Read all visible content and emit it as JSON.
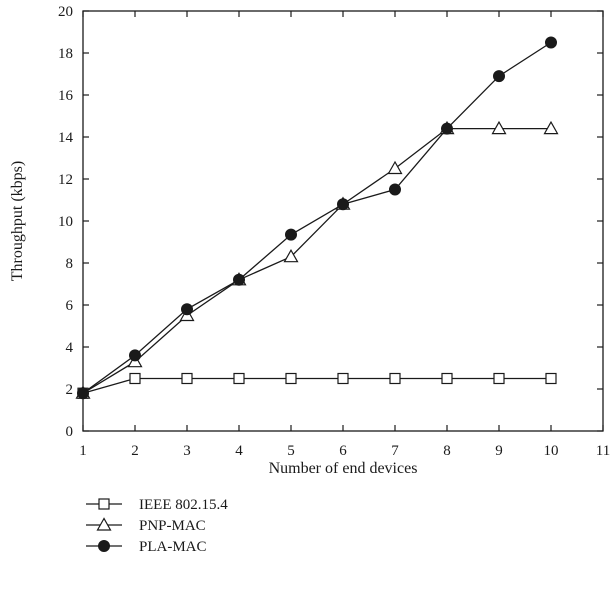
{
  "chart_data": {
    "type": "line",
    "xlabel": "Number of end devices",
    "ylabel": "Throughput (kbps)",
    "xlim": [
      1,
      11
    ],
    "ylim": [
      0,
      20
    ],
    "x_ticks": [
      1,
      2,
      3,
      4,
      5,
      6,
      7,
      8,
      9,
      10,
      11
    ],
    "y_ticks": [
      0,
      2,
      4,
      6,
      8,
      10,
      12,
      14,
      16,
      18,
      20
    ],
    "grid": false,
    "legend_position": "below-left",
    "x": [
      1,
      2,
      3,
      4,
      5,
      6,
      7,
      8,
      9,
      10
    ],
    "series": [
      {
        "name": "IEEE 802.15.4",
        "marker": "square-open",
        "values": [
          1.8,
          2.5,
          2.5,
          2.5,
          2.5,
          2.5,
          2.5,
          2.5,
          2.5,
          2.5
        ]
      },
      {
        "name": "PNP-MAC",
        "marker": "triangle-open",
        "values": [
          1.8,
          3.3,
          5.5,
          7.2,
          8.3,
          10.8,
          12.5,
          14.4,
          14.4,
          14.4
        ]
      },
      {
        "name": "PLA-MAC",
        "marker": "circle-filled",
        "values": [
          1.8,
          3.6,
          5.8,
          7.2,
          9.35,
          10.8,
          11.5,
          14.4,
          16.9,
          18.5
        ]
      }
    ],
    "colors": {
      "line": "#1a1a1a",
      "fill": "#ffffff"
    }
  }
}
